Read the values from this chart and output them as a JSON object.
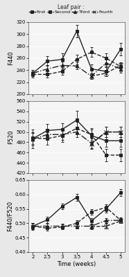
{
  "x": [
    2,
    2.5,
    3,
    3.5,
    4,
    4.5,
    5
  ],
  "F440": {
    "First": [
      235,
      255,
      258,
      305,
      242,
      238,
      275
    ],
    "Second": [
      233,
      233,
      238,
      258,
      270,
      260,
      246
    ],
    "Third": [
      235,
      242,
      248,
      247,
      230,
      252,
      242
    ],
    "Fourth": [
      null,
      null,
      null,
      null,
      230,
      235,
      248
    ]
  },
  "F440_err": {
    "First": [
      5,
      8,
      10,
      10,
      8,
      8,
      10
    ],
    "Second": [
      5,
      5,
      6,
      8,
      8,
      8,
      6
    ],
    "Third": [
      5,
      6,
      6,
      6,
      5,
      7,
      6
    ],
    "Fourth": [
      null,
      null,
      null,
      null,
      5,
      5,
      5
    ]
  },
  "F520": {
    "First": [
      487,
      503,
      505,
      523,
      493,
      483,
      483
    ],
    "Second": [
      488,
      487,
      493,
      507,
      495,
      455,
      455
    ],
    "Third": [
      486,
      495,
      495,
      500,
      478,
      500,
      500
    ],
    "Fourth": [
      null,
      null,
      null,
      null,
      477,
      500,
      500
    ]
  },
  "F520_err": {
    "First": [
      18,
      12,
      12,
      18,
      12,
      12,
      12
    ],
    "Second": [
      12,
      12,
      12,
      12,
      12,
      12,
      12
    ],
    "Third": [
      12,
      10,
      10,
      10,
      10,
      10,
      10
    ],
    "Fourth": [
      null,
      null,
      null,
      null,
      10,
      10,
      10
    ]
  },
  "F440F520": {
    "First": [
      0.49,
      0.512,
      0.558,
      0.59,
      0.508,
      0.55,
      0.607
    ],
    "Second": [
      0.49,
      0.483,
      0.487,
      0.5,
      0.54,
      0.555,
      0.51
    ],
    "Third": [
      0.49,
      0.49,
      0.49,
      0.49,
      0.49,
      0.51,
      0.51
    ],
    "Fourth": [
      null,
      null,
      null,
      null,
      0.488,
      0.49,
      0.508
    ]
  },
  "F440F520_err": {
    "First": [
      0.012,
      0.01,
      0.01,
      0.012,
      0.01,
      0.012,
      0.012
    ],
    "Second": [
      0.01,
      0.008,
      0.008,
      0.01,
      0.01,
      0.012,
      0.01
    ],
    "Third": [
      0.008,
      0.008,
      0.008,
      0.008,
      0.008,
      0.008,
      0.008
    ],
    "Fourth": [
      null,
      null,
      null,
      null,
      0.008,
      0.008,
      0.008
    ]
  },
  "series_styles": {
    "First": {
      "color": "#222222",
      "linestyle": "-",
      "marker": "s",
      "markersize": 3.5,
      "linewidth": 1.0,
      "filled": true
    },
    "Second": {
      "color": "#222222",
      "linestyle": "--",
      "marker": "s",
      "markersize": 3.5,
      "linewidth": 1.0,
      "filled": true
    },
    "Third": {
      "color": "#222222",
      "linestyle": "-.",
      "marker": "^",
      "markersize": 3.5,
      "linewidth": 1.0,
      "filled": true
    },
    "Fourth": {
      "color": "#222222",
      "linestyle": "--",
      "marker": "x",
      "markersize": 4.0,
      "linewidth": 1.0,
      "filled": false
    }
  },
  "ylim_F440": [
    200,
    320
  ],
  "yticks_F440": [
    200,
    220,
    240,
    260,
    280,
    300,
    320
  ],
  "ylim_F520": [
    420,
    560
  ],
  "yticks_F520": [
    420,
    440,
    460,
    480,
    500,
    520,
    540,
    560
  ],
  "ylim_F440F520": [
    0.4,
    0.65
  ],
  "yticks_F440F520": [
    0.4,
    0.45,
    0.5,
    0.55,
    0.6,
    0.65
  ],
  "xlabel": "Time (weeks)",
  "ylabel_top": "F440",
  "ylabel_mid": "F520",
  "ylabel_bot": "F440/F520",
  "legend_title": "Leaf pair :",
  "series_names": [
    "First",
    "Second",
    "Third",
    "Fourth"
  ],
  "background_color": "#e8e8e8",
  "panel_bg": "#f5f5f5"
}
